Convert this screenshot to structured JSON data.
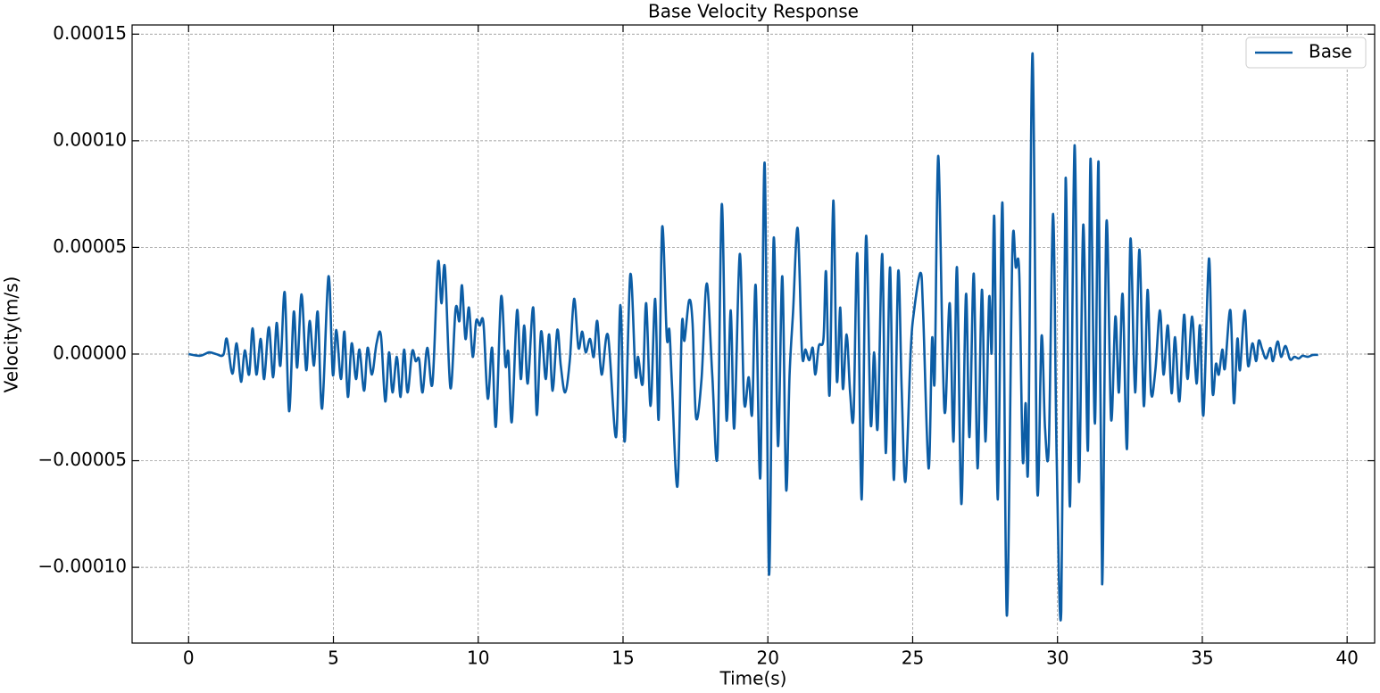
{
  "chart_data": {
    "type": "line",
    "title": "Base Velocity Response",
    "xlabel": "Time(s)",
    "ylabel": "Velocity(m/s)",
    "xlim": [
      -1.95,
      40.95
    ],
    "ylim": [
      -0.0001355,
      0.0001543
    ],
    "xticks": [
      0,
      5,
      10,
      15,
      20,
      25,
      30,
      35,
      40
    ],
    "yticks": [
      {
        "value": -0.0001,
        "label": "−0.00010"
      },
      {
        "value": -5e-05,
        "label": "−0.00005"
      },
      {
        "value": 0,
        "label": "0.00000"
      },
      {
        "value": 5e-05,
        "label": "0.00005"
      },
      {
        "value": 0.0001,
        "label": "0.00010"
      },
      0.00015
    ],
    "grid": true,
    "legend": "upper right",
    "x": [
      0,
      0.4,
      0.71,
      0.95,
      1.2,
      1.32,
      1.51,
      1.66,
      1.81,
      1.94,
      2.09,
      2.21,
      2.34,
      2.49,
      2.61,
      2.77,
      2.92,
      3.04,
      3.17,
      3.32,
      3.47,
      3.63,
      3.75,
      3.9,
      4.06,
      4.18,
      4.33,
      4.46,
      4.61,
      4.83,
      4.98,
      5.1,
      5.26,
      5.38,
      5.5,
      5.63,
      5.78,
      5.9,
      6.06,
      6.18,
      6.33,
      6.49,
      6.64,
      6.79,
      6.92,
      7.04,
      7.19,
      7.32,
      7.44,
      7.56,
      7.72,
      7.84,
      7.96,
      8.08,
      8.24,
      8.42,
      8.61,
      8.73,
      8.85,
      9.04,
      9.22,
      9.35,
      9.44,
      9.56,
      9.68,
      9.81,
      9.93,
      10.05,
      10.18,
      10.33,
      10.48,
      10.61,
      10.79,
      10.94,
      11.04,
      11.16,
      11.34,
      11.47,
      11.59,
      11.71,
      11.9,
      12.02,
      12.17,
      12.33,
      12.45,
      12.57,
      12.73,
      12.85,
      13.0,
      13.16,
      13.31,
      13.46,
      13.59,
      13.71,
      13.86,
      13.99,
      14.11,
      14.26,
      14.48,
      14.76,
      14.91,
      15.06,
      15.25,
      15.43,
      15.52,
      15.68,
      15.8,
      15.95,
      16.11,
      16.23,
      16.35,
      16.51,
      16.6,
      16.69,
      16.88,
      17.03,
      17.12,
      17.28,
      17.4,
      17.52,
      17.71,
      17.89,
      18.08,
      18.26,
      18.41,
      18.57,
      18.72,
      18.84,
      19.03,
      19.18,
      19.34,
      19.46,
      19.58,
      19.74,
      19.89,
      20.04,
      20.2,
      20.35,
      20.5,
      20.63,
      20.75,
      20.87,
      21.03,
      21.18,
      21.3,
      21.43,
      21.55,
      21.64,
      21.76,
      21.92,
      22.01,
      22.13,
      22.26,
      22.38,
      22.5,
      22.59,
      22.72,
      22.84,
      22.96,
      23.09,
      23.24,
      23.39,
      23.55,
      23.67,
      23.79,
      23.95,
      24.07,
      24.22,
      24.35,
      24.5,
      24.62,
      24.75,
      24.93,
      25.05,
      25.27,
      25.36,
      25.55,
      25.67,
      25.76,
      25.88,
      26.04,
      26.13,
      26.28,
      26.41,
      26.53,
      26.68,
      26.84,
      26.96,
      27.11,
      27.24,
      27.39,
      27.51,
      27.64,
      27.73,
      27.82,
      27.94,
      28.1,
      28.25,
      28.44,
      28.56,
      28.68,
      28.8,
      28.9,
      28.99,
      29.14,
      29.3,
      29.45,
      29.57,
      29.7,
      29.85,
      29.97,
      30.13,
      30.28,
      30.43,
      30.59,
      30.74,
      30.89,
      31.05,
      31.14,
      31.29,
      31.42,
      31.54,
      31.69,
      31.85,
      32.0,
      32.12,
      32.25,
      32.4,
      32.52,
      32.68,
      32.83,
      32.98,
      33.11,
      33.23,
      33.38,
      33.54,
      33.66,
      33.81,
      33.94,
      34.06,
      34.21,
      34.37,
      34.49,
      34.65,
      34.8,
      34.92,
      35.04,
      35.23,
      35.35,
      35.47,
      35.57,
      35.69,
      35.78,
      35.97,
      36.09,
      36.21,
      36.3,
      36.46,
      36.58,
      36.73,
      36.86,
      36.95,
      37.07,
      37.2,
      37.35,
      37.44,
      37.6,
      37.72,
      37.87,
      38.03,
      38.18,
      38.33,
      38.46,
      38.64,
      38.82,
      39.0
    ],
    "series": [
      {
        "name": "Base",
        "color": "#0c5da5",
        "values": [
          0,
          -8e-07,
          8e-07,
          0,
          -4e-07,
          7.1e-06,
          -9.2e-06,
          5e-06,
          -1.3e-05,
          1.7e-06,
          -9.6e-06,
          1.21e-05,
          -9.6e-06,
          7.1e-06,
          -1.17e-05,
          1.26e-05,
          -1.09e-05,
          1.46e-05,
          -5.4e-06,
          2.89e-05,
          -2.68e-05,
          1.97e-05,
          -6.3e-06,
          2.8e-05,
          -7.5e-06,
          1.55e-05,
          -5.4e-06,
          1.97e-05,
          -2.55e-05,
          3.64e-05,
          -9.6e-06,
          1.13e-05,
          -1.17e-05,
          1.05e-05,
          -2.01e-05,
          5e-06,
          -1.17e-05,
          2.1e-06,
          -1.72e-05,
          2.9e-06,
          -9.6e-06,
          5e-06,
          8.8e-06,
          -2.22e-05,
          8e-07,
          -1.8e-05,
          -1.3e-06,
          -2.01e-05,
          2.1e-06,
          -1.8e-05,
          1.3e-06,
          -3.3e-06,
          -2.5e-06,
          -1.8e-05,
          2.9e-06,
          -1.38e-05,
          4.27e-05,
          2.38e-05,
          4.06e-05,
          -1.59e-05,
          2.13e-05,
          1.55e-05,
          3.22e-05,
          7.1e-06,
          2.18e-05,
          -1.3e-06,
          1.55e-05,
          1.34e-05,
          1.46e-05,
          -2.09e-05,
          2.9e-06,
          -3.39e-05,
          2.68e-05,
          -5.4e-06,
          8e-07,
          -3.18e-05,
          2.05e-05,
          -1.17e-05,
          1.34e-05,
          -1.38e-05,
          2.18e-05,
          -2.85e-05,
          1.05e-05,
          -1.17e-05,
          9.2e-06,
          -1.72e-05,
          1.13e-05,
          -5.4e-06,
          -1.8e-05,
          -3.3e-06,
          2.59e-05,
          2.9e-06,
          1.05e-05,
          8e-07,
          7.1e-06,
          -1.3e-06,
          1.55e-05,
          -9.6e-06,
          8.8e-06,
          -3.89e-05,
          2.3e-05,
          -4.1e-05,
          3.72e-05,
          -9.6e-06,
          -1.3e-06,
          -1.38e-05,
          2.38e-05,
          -2.43e-05,
          2.59e-05,
          -3.05e-05,
          5.94e-05,
          7.9e-06,
          1.13e-05,
          -1.46e-05,
          -6.19e-05,
          1.3e-05,
          6.3e-06,
          2.51e-05,
          1.46e-05,
          -2.97e-05,
          -1.17e-05,
          3.31e-05,
          -9.6e-06,
          -4.73e-05,
          7.03e-05,
          -3.05e-05,
          2.05e-05,
          -3.47e-05,
          4.69e-05,
          -2.22e-05,
          -1.09e-05,
          -2.76e-05,
          3.22e-05,
          -5.77e-05,
          8.95e-05,
          -0.0001033,
          5.4e-05,
          -4.31e-05,
          3.64e-05,
          -6.32e-05,
          -9.6e-06,
          1.97e-05,
          5.9e-05,
          4e-07,
          2.1e-06,
          -2.9e-06,
          2.9e-06,
          -9.6e-06,
          3.8e-06,
          7.1e-06,
          3.85e-05,
          -1.92e-05,
          7.2e-05,
          -1.21e-05,
          2.18e-05,
          -1.63e-05,
          9.2e-06,
          -1.8e-05,
          -2.85e-05,
          4.69e-05,
          -6.82e-05,
          5.52e-05,
          -3.26e-05,
          8e-07,
          -3.47e-05,
          4.69e-05,
          -4.64e-05,
          4.06e-05,
          -5.9e-05,
          3.85e-05,
          -1.63e-05,
          -5.98e-05,
          8e-07,
          2.05e-05,
          3.81e-05,
          1.97e-05,
          -5.36e-05,
          7.1e-06,
          -1.17e-05,
          9.29e-05,
          -3.3e-06,
          -2.64e-05,
          2.38e-05,
          -4.1e-05,
          4.06e-05,
          -7.03e-05,
          2.8e-05,
          -3.89e-05,
          3.77e-05,
          -5.36e-05,
          3.01e-05,
          -4.1e-05,
          2.64e-05,
          8e-07,
          6.36e-05,
          -6.82e-05,
          7.07e-05,
          -0.0001226,
          4.69e-05,
          4.06e-05,
          3.77e-05,
          -4.94e-05,
          -2.3e-05,
          -4.98e-05,
          0.000141,
          -6.28e-05,
          8.4e-06,
          -3.47e-05,
          -4.31e-05,
          6.57e-05,
          -4.73e-05,
          -0.0001205,
          8.24e-05,
          -7.15e-05,
          9.79e-05,
          -5.98e-05,
          6.07e-05,
          -4.52e-05,
          9.16e-05,
          -3.26e-05,
          8.95e-05,
          -0.0001079,
          6.15e-05,
          -3.05e-05,
          1.76e-05,
          -1.8e-05,
          2.8e-05,
          -4.44e-05,
          5.4e-05,
          -1.8e-05,
          4.9e-05,
          -2.43e-05,
          3.01e-05,
          -1.8e-05,
          -7.5e-06,
          2.05e-05,
          -9.6e-06,
          1.34e-05,
          -1.84e-05,
          7.9e-06,
          -2.22e-05,
          1.84e-05,
          -1.17e-05,
          1.76e-05,
          -1.38e-05,
          1.34e-05,
          -2.85e-05,
          4.48e-05,
          -1.72e-05,
          -4.6e-06,
          -9.6e-06,
          2.1e-06,
          -6.7e-06,
          2.05e-05,
          -2.3e-05,
          7.1e-06,
          -7.5e-06,
          2.05e-05,
          -5.4e-06,
          5e-06,
          -3.3e-06,
          6.3e-06,
          2.1e-06,
          -2.1e-06,
          2.9e-06,
          -3.3e-06,
          5.9e-06,
          -1.3e-06,
          3.8e-06,
          -2.5e-06,
          -1.3e-06,
          -2.1e-06,
          -8e-07,
          -1.3e-06,
          -4e-07,
          -4e-07
        ]
      }
    ]
  }
}
